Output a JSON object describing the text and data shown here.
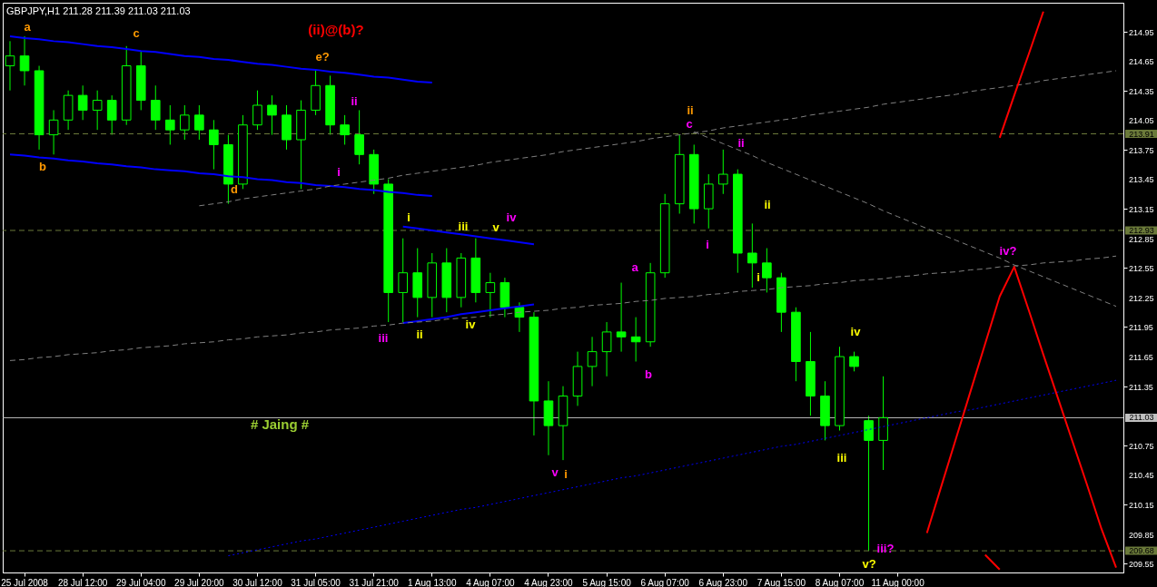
{
  "chart_data": {
    "type": "candlestick",
    "title": "GBPJPY,H1  211.28 211.39 211.03 211.03",
    "color": "#00ff00",
    "categories": [
      null,
      "25 Jul 2008",
      null,
      null,
      null,
      "28 Jul 12:00",
      null,
      null,
      null,
      "29 Jul 04:00",
      null,
      null,
      null,
      "29 Jul 20:00",
      null,
      null,
      null,
      "30 Jul 12:00",
      null,
      null,
      null,
      "31 Jul 05:00",
      null,
      null,
      null,
      "31 Jul 21:00",
      null,
      null,
      null,
      "1 Aug 13:00",
      null,
      null,
      null,
      "4 Aug 07:00",
      null,
      null,
      null,
      "4 Aug 23:00",
      null,
      null,
      null,
      "5 Aug 15:00",
      null,
      null,
      null,
      "6 Aug 07:00",
      null,
      null,
      null,
      "6 Aug 23:00",
      null,
      null,
      null,
      "7 Aug 15:00",
      null,
      null,
      null,
      "8 Aug 07:00",
      null,
      null,
      null,
      "11 Aug 00:00",
      null,
      null,
      null,
      null,
      null,
      null,
      null,
      null,
      null,
      null,
      null,
      null,
      null,
      null,
      null
    ],
    "ohlc": [
      [
        214.6,
        214.85,
        214.35,
        214.7
      ],
      [
        214.7,
        214.9,
        214.4,
        214.55
      ],
      [
        214.55,
        214.6,
        213.75,
        213.9
      ],
      [
        213.9,
        214.15,
        213.7,
        214.05
      ],
      [
        214.05,
        214.35,
        213.95,
        214.3
      ],
      [
        214.3,
        214.4,
        214.05,
        214.15
      ],
      [
        214.15,
        214.35,
        213.95,
        214.25
      ],
      [
        214.25,
        214.3,
        213.9,
        214.05
      ],
      [
        214.05,
        214.8,
        214.0,
        214.6
      ],
      [
        214.6,
        214.75,
        214.15,
        214.25
      ],
      [
        214.25,
        214.4,
        213.95,
        214.05
      ],
      [
        214.05,
        214.2,
        213.8,
        213.95
      ],
      [
        213.95,
        214.2,
        213.85,
        214.1
      ],
      [
        214.1,
        214.2,
        213.85,
        213.95
      ],
      [
        213.95,
        214.05,
        213.55,
        213.8
      ],
      [
        213.8,
        213.9,
        213.2,
        213.4
      ],
      [
        213.4,
        214.1,
        213.35,
        214.0
      ],
      [
        214.0,
        214.35,
        213.95,
        214.2
      ],
      [
        214.2,
        214.3,
        213.9,
        214.1
      ],
      [
        214.1,
        214.2,
        213.75,
        213.85
      ],
      [
        213.85,
        214.25,
        213.35,
        214.15
      ],
      [
        214.15,
        214.55,
        214.1,
        214.4
      ],
      [
        214.4,
        214.5,
        213.9,
        214.0
      ],
      [
        214.0,
        214.1,
        213.8,
        213.9
      ],
      [
        213.9,
        214.15,
        213.6,
        213.7
      ],
      [
        213.7,
        213.75,
        213.3,
        213.4
      ],
      [
        213.4,
        213.45,
        212.0,
        212.3
      ],
      [
        212.3,
        212.85,
        212.0,
        212.5
      ],
      [
        212.5,
        212.75,
        212.05,
        212.25
      ],
      [
        212.25,
        212.7,
        212.05,
        212.6
      ],
      [
        212.6,
        212.75,
        212.1,
        212.25
      ],
      [
        212.25,
        212.7,
        212.15,
        212.65
      ],
      [
        212.65,
        212.85,
        212.2,
        212.3
      ],
      [
        212.3,
        212.5,
        212.05,
        212.4
      ],
      [
        212.4,
        212.45,
        212.05,
        212.15
      ],
      [
        212.15,
        212.2,
        211.9,
        212.05
      ],
      [
        212.05,
        212.1,
        210.85,
        211.2
      ],
      [
        211.2,
        211.4,
        210.65,
        210.95
      ],
      [
        210.95,
        211.35,
        210.6,
        211.25
      ],
      [
        211.25,
        211.7,
        211.15,
        211.55
      ],
      [
        211.55,
        211.85,
        211.35,
        211.7
      ],
      [
        211.7,
        212.0,
        211.45,
        211.9
      ],
      [
        211.9,
        212.4,
        211.7,
        211.85
      ],
      [
        211.85,
        212.05,
        211.6,
        211.8
      ],
      [
        211.8,
        212.6,
        211.75,
        212.5
      ],
      [
        212.5,
        213.3,
        212.45,
        213.2
      ],
      [
        213.2,
        213.9,
        213.1,
        213.7
      ],
      [
        213.7,
        213.8,
        213.0,
        213.15
      ],
      [
        213.15,
        213.5,
        212.95,
        213.4
      ],
      [
        213.4,
        213.75,
        213.3,
        213.5
      ],
      [
        213.5,
        213.55,
        212.5,
        212.7
      ],
      [
        212.7,
        213.0,
        212.35,
        212.6
      ],
      [
        212.6,
        212.75,
        212.3,
        212.45
      ],
      [
        212.45,
        212.5,
        211.9,
        212.1
      ],
      [
        212.1,
        212.15,
        211.4,
        211.6
      ],
      [
        211.6,
        211.9,
        211.05,
        211.25
      ],
      [
        211.25,
        211.4,
        210.8,
        210.95
      ],
      [
        210.95,
        211.75,
        210.9,
        211.65
      ],
      [
        211.65,
        211.7,
        211.5,
        211.55
      ],
      [
        211.0,
        211.05,
        209.68,
        210.8
      ],
      [
        210.8,
        211.45,
        210.5,
        211.03
      ],
      null,
      null,
      null,
      null,
      null,
      null,
      null,
      null,
      null,
      null,
      null,
      null,
      null,
      null,
      null,
      null
    ],
    "series": [
      {
        "type": "line",
        "color": "#0000ff",
        "values": [
          214.9,
          214.88,
          214.87,
          214.85,
          214.84,
          214.82,
          214.8,
          214.79,
          214.77,
          214.75,
          214.74,
          214.72,
          214.7,
          214.69,
          214.67,
          214.66,
          214.64,
          214.62,
          214.61,
          214.59,
          214.57,
          214.56,
          214.54,
          214.53,
          214.51,
          214.49,
          214.48,
          214.46,
          214.44,
          214.43,
          null,
          null,
          null,
          null,
          null,
          null,
          null,
          null,
          null,
          null,
          null,
          null,
          null,
          null,
          null,
          null,
          null,
          null,
          null,
          null,
          null,
          null,
          null,
          null,
          null,
          null,
          null,
          null,
          null,
          null,
          null,
          null,
          null,
          null,
          null,
          null,
          null,
          null,
          null,
          null,
          null,
          null,
          null,
          null,
          null,
          null,
          null
        ]
      },
      {
        "type": "line",
        "color": "#0000ff",
        "values": [
          213.7,
          213.69,
          213.67,
          213.66,
          213.64,
          213.63,
          213.61,
          213.6,
          213.58,
          213.57,
          213.55,
          213.54,
          213.53,
          213.51,
          213.5,
          213.48,
          213.47,
          213.45,
          213.44,
          213.42,
          213.41,
          213.39,
          213.38,
          213.37,
          213.35,
          213.34,
          213.32,
          213.31,
          213.29,
          213.28,
          null,
          null,
          null,
          null,
          null,
          null,
          null,
          null,
          null,
          null,
          null,
          null,
          null,
          null,
          null,
          null,
          null,
          null,
          null,
          null,
          null,
          null,
          null,
          null,
          null,
          null,
          null,
          null,
          null,
          null,
          null,
          null,
          null,
          null,
          null,
          null,
          null,
          null,
          null,
          null,
          null,
          null,
          null,
          null,
          null,
          null,
          null
        ]
      },
      {
        "type": "line",
        "color": "#0000ff",
        "values": [
          null,
          null,
          null,
          null,
          null,
          null,
          null,
          null,
          null,
          null,
          null,
          null,
          null,
          null,
          null,
          null,
          null,
          null,
          null,
          null,
          null,
          null,
          null,
          null,
          null,
          null,
          null,
          212.97,
          212.95,
          212.93,
          212.91,
          212.89,
          212.87,
          212.85,
          212.83,
          212.81,
          212.79,
          null,
          null,
          null,
          null,
          null,
          null,
          null,
          null,
          null,
          null,
          null,
          null,
          null,
          null,
          null,
          null,
          null,
          null,
          null,
          null,
          null,
          null,
          null,
          null,
          null,
          null,
          null,
          null,
          null,
          null,
          null,
          null,
          null,
          null,
          null,
          null,
          null,
          null,
          null,
          null
        ]
      },
      {
        "type": "line",
        "color": "#0000ff",
        "values": [
          null,
          null,
          null,
          null,
          null,
          null,
          null,
          null,
          null,
          null,
          null,
          null,
          null,
          null,
          null,
          null,
          null,
          null,
          null,
          null,
          null,
          null,
          null,
          null,
          null,
          null,
          null,
          211.99,
          212.01,
          212.03,
          212.05,
          212.08,
          212.1,
          212.12,
          212.14,
          212.16,
          212.18,
          null,
          null,
          null,
          null,
          null,
          null,
          null,
          null,
          null,
          null,
          null,
          null,
          null,
          null,
          null,
          null,
          null,
          null,
          null,
          null,
          null,
          null,
          null,
          null,
          null,
          null,
          null,
          null,
          null,
          null,
          null,
          null,
          null,
          null,
          null,
          null,
          null,
          null,
          null,
          null
        ]
      },
      {
        "type": "line",
        "color": "#808080",
        "line_style": "dashed",
        "values": [
          null,
          null,
          null,
          null,
          null,
          null,
          null,
          null,
          null,
          null,
          null,
          null,
          null,
          213.18,
          213.2,
          213.22,
          213.25,
          213.27,
          213.29,
          213.31,
          213.33,
          213.35,
          213.38,
          213.4,
          213.42,
          213.44,
          213.46,
          213.49,
          213.51,
          213.53,
          213.55,
          213.57,
          213.59,
          213.62,
          213.64,
          213.66,
          213.68,
          213.7,
          213.73,
          213.75,
          213.77,
          213.79,
          213.81,
          213.83,
          213.86,
          213.88,
          213.9,
          213.92,
          213.94,
          213.97,
          213.99,
          214.01,
          214.03,
          214.05,
          214.07,
          214.1,
          214.12,
          214.14,
          214.16,
          214.18,
          214.21,
          214.23,
          214.25,
          214.27,
          214.29,
          214.31,
          214.34,
          214.36,
          214.38,
          214.4,
          214.42,
          214.45,
          214.47,
          214.49,
          214.51,
          214.53,
          214.55
        ]
      },
      {
        "type": "line",
        "color": "#808080",
        "line_style": "dashed",
        "values": [
          211.61,
          211.62,
          211.64,
          211.65,
          211.67,
          211.68,
          211.69,
          211.71,
          211.72,
          211.74,
          211.75,
          211.76,
          211.78,
          211.79,
          211.8,
          211.82,
          211.83,
          211.85,
          211.86,
          211.87,
          211.89,
          211.9,
          211.92,
          211.93,
          211.94,
          211.96,
          211.97,
          211.99,
          212.0,
          212.01,
          212.03,
          212.04,
          212.05,
          212.07,
          212.08,
          212.1,
          212.11,
          212.12,
          212.14,
          212.15,
          212.17,
          212.18,
          212.19,
          212.21,
          212.22,
          212.24,
          212.25,
          212.26,
          212.28,
          212.29,
          212.31,
          212.32,
          212.33,
          212.35,
          212.36,
          212.37,
          212.39,
          212.4,
          212.42,
          212.43,
          212.44,
          212.46,
          212.47,
          212.49,
          212.5,
          212.51,
          212.53,
          212.54,
          212.56,
          212.57,
          212.58,
          212.6,
          212.61,
          212.62,
          212.64,
          212.65,
          212.67
        ]
      },
      {
        "type": "line",
        "color": "#808080",
        "line_style": "dashed",
        "values": [
          null,
          null,
          null,
          null,
          null,
          null,
          null,
          null,
          null,
          null,
          null,
          null,
          null,
          null,
          null,
          null,
          null,
          null,
          null,
          null,
          null,
          null,
          null,
          null,
          null,
          null,
          null,
          null,
          null,
          null,
          null,
          null,
          null,
          null,
          null,
          null,
          null,
          null,
          null,
          null,
          null,
          null,
          null,
          null,
          null,
          null,
          null,
          213.93,
          213.87,
          213.81,
          213.75,
          213.69,
          213.62,
          213.56,
          213.5,
          213.44,
          213.38,
          213.32,
          213.26,
          213.2,
          213.13,
          213.07,
          213.01,
          212.95,
          212.89,
          212.83,
          212.77,
          212.71,
          212.65,
          212.58,
          212.52,
          212.46,
          212.4,
          212.34,
          212.28,
          212.22,
          212.16
        ]
      },
      {
        "type": "line",
        "color": "#0000ff",
        "line_style": "dotted",
        "values": [
          null,
          null,
          null,
          null,
          null,
          null,
          null,
          null,
          null,
          null,
          null,
          null,
          null,
          null,
          null,
          209.63,
          209.66,
          209.69,
          209.72,
          209.75,
          209.78,
          209.8,
          209.83,
          209.86,
          209.89,
          209.92,
          209.95,
          209.98,
          210.01,
          210.04,
          210.07,
          210.1,
          210.12,
          210.15,
          210.18,
          210.21,
          210.24,
          210.27,
          210.3,
          210.33,
          210.36,
          210.39,
          210.42,
          210.44,
          210.47,
          210.5,
          210.53,
          210.56,
          210.59,
          210.62,
          210.65,
          210.68,
          210.71,
          210.74,
          210.76,
          210.79,
          210.82,
          210.85,
          210.88,
          210.91,
          210.94,
          210.97,
          211.0,
          211.03,
          211.06,
          211.09,
          211.11,
          211.14,
          211.17,
          211.2,
          211.23,
          211.26,
          211.29,
          211.32,
          211.35,
          211.38,
          211.41
        ]
      },
      {
        "type": "line",
        "color": "#ff0000",
        "values": [
          null,
          null,
          null,
          null,
          null,
          null,
          null,
          null,
          null,
          null,
          null,
          null,
          null,
          null,
          null,
          null,
          null,
          null,
          null,
          null,
          null,
          null,
          null,
          null,
          null,
          null,
          null,
          null,
          null,
          null,
          null,
          null,
          null,
          null,
          null,
          null,
          null,
          null,
          null,
          null,
          null,
          null,
          null,
          null,
          null,
          null,
          null,
          null,
          null,
          null,
          null,
          null,
          null,
          null,
          null,
          null,
          null,
          null,
          null,
          null,
          null,
          null,
          null,
          209.86,
          210.34,
          210.82,
          211.3,
          211.78,
          212.26,
          212.56,
          212.12,
          211.67,
          211.23,
          210.79,
          210.35,
          209.9,
          209.51
        ]
      },
      {
        "type": "line",
        "color": "#ff0000",
        "values": [
          null,
          null,
          null,
          null,
          null,
          null,
          null,
          null,
          null,
          null,
          null,
          null,
          null,
          null,
          null,
          null,
          null,
          null,
          null,
          null,
          null,
          null,
          null,
          null,
          null,
          null,
          null,
          null,
          null,
          null,
          null,
          null,
          null,
          null,
          null,
          null,
          null,
          null,
          null,
          null,
          null,
          null,
          null,
          null,
          null,
          null,
          null,
          null,
          null,
          null,
          null,
          null,
          null,
          null,
          null,
          null,
          null,
          null,
          null,
          null,
          null,
          null,
          null,
          null,
          null,
          null,
          null,
          null,
          213.87,
          214.3,
          214.72,
          215.15,
          null,
          null,
          null,
          null,
          null
        ]
      },
      {
        "type": "line",
        "color": "#ff0000",
        "values": [
          null,
          null,
          null,
          null,
          null,
          null,
          null,
          null,
          null,
          null,
          null,
          null,
          null,
          null,
          null,
          null,
          null,
          null,
          null,
          null,
          null,
          null,
          null,
          null,
          null,
          null,
          null,
          null,
          null,
          null,
          null,
          null,
          null,
          null,
          null,
          null,
          null,
          null,
          null,
          null,
          null,
          null,
          null,
          null,
          null,
          null,
          null,
          null,
          null,
          null,
          null,
          null,
          null,
          null,
          null,
          null,
          null,
          null,
          null,
          null,
          null,
          null,
          null,
          null,
          null,
          null,
          null,
          209.64,
          209.49,
          null,
          null,
          null,
          null,
          null,
          null,
          null,
          null
        ]
      }
    ],
    "ylim": [
      209.46,
      215.24
    ],
    "yticks": [
      209.55,
      209.85,
      210.15,
      210.45,
      210.75,
      {
        "value": 211.05,
        "label": null
      },
      211.35,
      211.65,
      211.95,
      212.25,
      212.55,
      212.85,
      213.15,
      213.45,
      213.75,
      214.05,
      214.35,
      214.65,
      214.95
    ],
    "ref_lines": [
      {
        "axis": "y",
        "value": 213.91,
        "label": "213.91",
        "color": "#6b7a3a",
        "line_style": "dashed"
      },
      {
        "axis": "y",
        "value": 212.93,
        "label": "212.93",
        "color": "#6b7a3a",
        "line_style": "dashed"
      },
      {
        "axis": "y",
        "value": 211.03,
        "label": "211.03",
        "color": "#c0c0c0",
        "line_style": "solid"
      },
      {
        "axis": "y",
        "value": 209.68,
        "label": "209.68",
        "color": "#6b7a3a",
        "line_style": "dashed"
      }
    ],
    "annotations": [
      "a",
      "b",
      "c",
      "d",
      "e?",
      "(ii)@(b)?",
      "ii",
      "i",
      "iii",
      "i",
      "iii",
      "v",
      "iv",
      "ii",
      "iv",
      "v",
      "i",
      "a",
      "b",
      "ii",
      "c",
      "ii",
      "i",
      "ii",
      "i",
      "iv",
      "iii",
      "iii?",
      "v?",
      "iv?",
      "# Jaing #"
    ]
  }
}
